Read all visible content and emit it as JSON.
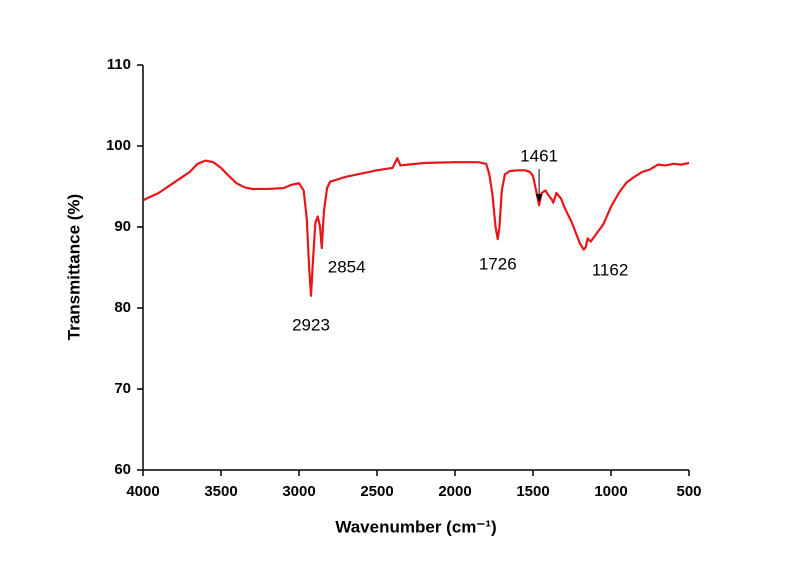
{
  "chart_data": {
    "type": "line",
    "x_label": "Wavenumber (cm⁻¹)",
    "y_label": "Transmittance (%)",
    "x": [
      4000,
      3900,
      3800,
      3700,
      3650,
      3600,
      3550,
      3500,
      3450,
      3400,
      3350,
      3300,
      3200,
      3100,
      3050,
      3000,
      2970,
      2950,
      2935,
      2923,
      2910,
      2895,
      2880,
      2865,
      2854,
      2840,
      2820,
      2800,
      2700,
      2600,
      2500,
      2400,
      2370,
      2350,
      2300,
      2200,
      2000,
      1850,
      1800,
      1780,
      1760,
      1740,
      1726,
      1715,
      1700,
      1680,
      1650,
      1600,
      1550,
      1520,
      1500,
      1480,
      1461,
      1445,
      1420,
      1400,
      1380,
      1370,
      1350,
      1320,
      1300,
      1250,
      1200,
      1175,
      1162,
      1150,
      1130,
      1100,
      1050,
      1000,
      950,
      900,
      850,
      800,
      750,
      700,
      650,
      600,
      550,
      500
    ],
    "series": [
      {
        "color": "#e8161b",
        "values": [
          93.3,
          94.2,
          95.5,
          96.8,
          97.8,
          98.2,
          98.0,
          97.3,
          96.3,
          95.4,
          94.9,
          94.7,
          94.7,
          94.8,
          95.2,
          95.4,
          94.5,
          91,
          85,
          81.5,
          86,
          90.5,
          91.3,
          90,
          87.4,
          92,
          94.8,
          95.6,
          96.2,
          96.6,
          97.0,
          97.3,
          98.5,
          97.6,
          97.7,
          97.9,
          98.0,
          98.0,
          97.8,
          96.5,
          94,
          90,
          88.5,
          90,
          94.5,
          96.5,
          96.9,
          97.0,
          97.0,
          96.8,
          96.3,
          94.5,
          92.7,
          94.2,
          94.5,
          93.9,
          93.4,
          93.0,
          94.2,
          93.5,
          92.5,
          90.5,
          88,
          87.2,
          87.5,
          88.6,
          88.2,
          89,
          90.3,
          92.5,
          94.2,
          95.5,
          96.2,
          96.8,
          97.1,
          97.7,
          97.6,
          97.8,
          97.7,
          97.9
        ]
      }
    ],
    "xlim": [
      4000,
      500
    ],
    "xticks": [
      4000,
      3500,
      3000,
      2500,
      2000,
      1500,
      1000,
      500
    ],
    "ylim": [
      60,
      110
    ],
    "yticks": [
      60,
      70,
      80,
      90,
      100,
      110
    ],
    "peak_labels": [
      2923,
      2854,
      1726,
      1461,
      1162
    ]
  }
}
